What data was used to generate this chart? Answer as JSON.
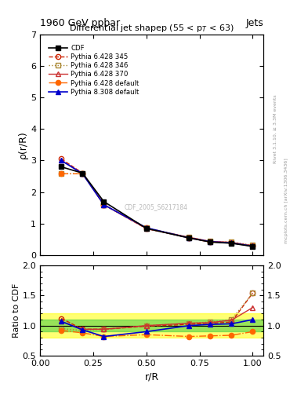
{
  "title_top": "1960 GeV ppbar",
  "title_top_right": "Jets",
  "title_main": "Differential jet shapep (55 < p$_T$ < 63)",
  "ylabel_main": "ρ(r/R)",
  "ylabel_ratio": "Ratio to CDF",
  "xlabel": "r/R",
  "right_label_top": "Rivet 3.1.10, ≥ 3.3M events",
  "right_label_bot": "mcplots.cern.ch [arXiv:1306.3436]",
  "watermark": "CDF_2005_S6217184",
  "xp": [
    0.1,
    0.2,
    0.3,
    0.5,
    0.7,
    0.8,
    0.9,
    1.0
  ],
  "cdf_main": [
    2.8,
    2.6,
    1.7,
    0.85,
    0.55,
    0.42,
    0.38,
    0.28
  ],
  "p6_345_main": [
    3.05,
    2.6,
    1.6,
    0.84,
    0.56,
    0.43,
    0.4,
    0.3
  ],
  "p6_346_main": [
    2.58,
    2.58,
    1.6,
    0.87,
    0.57,
    0.44,
    0.42,
    0.32
  ],
  "p6_370_main": [
    3.0,
    2.6,
    1.6,
    0.85,
    0.57,
    0.44,
    0.41,
    0.3
  ],
  "p6_def_main": [
    2.58,
    2.58,
    1.6,
    0.87,
    0.54,
    0.42,
    0.39,
    0.3
  ],
  "p8_def_main": [
    3.0,
    2.58,
    1.6,
    0.87,
    0.55,
    0.43,
    0.39,
    0.29
  ],
  "p6_345_ratio": [
    1.12,
    0.94,
    0.94,
    0.99,
    1.02,
    1.04,
    1.06,
    1.54
  ],
  "p6_346_ratio": [
    0.95,
    0.92,
    0.94,
    1.0,
    1.04,
    1.06,
    1.1,
    1.54
  ],
  "p6_370_ratio": [
    1.07,
    0.94,
    0.94,
    1.0,
    1.04,
    1.05,
    1.09,
    1.3
  ],
  "p6_def_ratio": [
    0.92,
    0.88,
    0.82,
    0.85,
    0.82,
    0.83,
    0.84,
    0.9
  ],
  "p8_def_ratio": [
    1.07,
    0.93,
    0.82,
    0.9,
    1.0,
    1.02,
    1.03,
    1.1
  ],
  "ylim_main": [
    0,
    7
  ],
  "ylim_ratio": [
    0.5,
    2.0
  ],
  "xlim": [
    0.0,
    1.05
  ],
  "green_band": [
    0.9,
    1.1
  ],
  "yellow_band": [
    0.8,
    1.2
  ],
  "color_cdf": "#000000",
  "color_p6_345": "#cc2200",
  "color_p6_346": "#aa8833",
  "color_p6_370": "#cc3333",
  "color_p6_def": "#ff6600",
  "color_p8_def": "#0000cc"
}
